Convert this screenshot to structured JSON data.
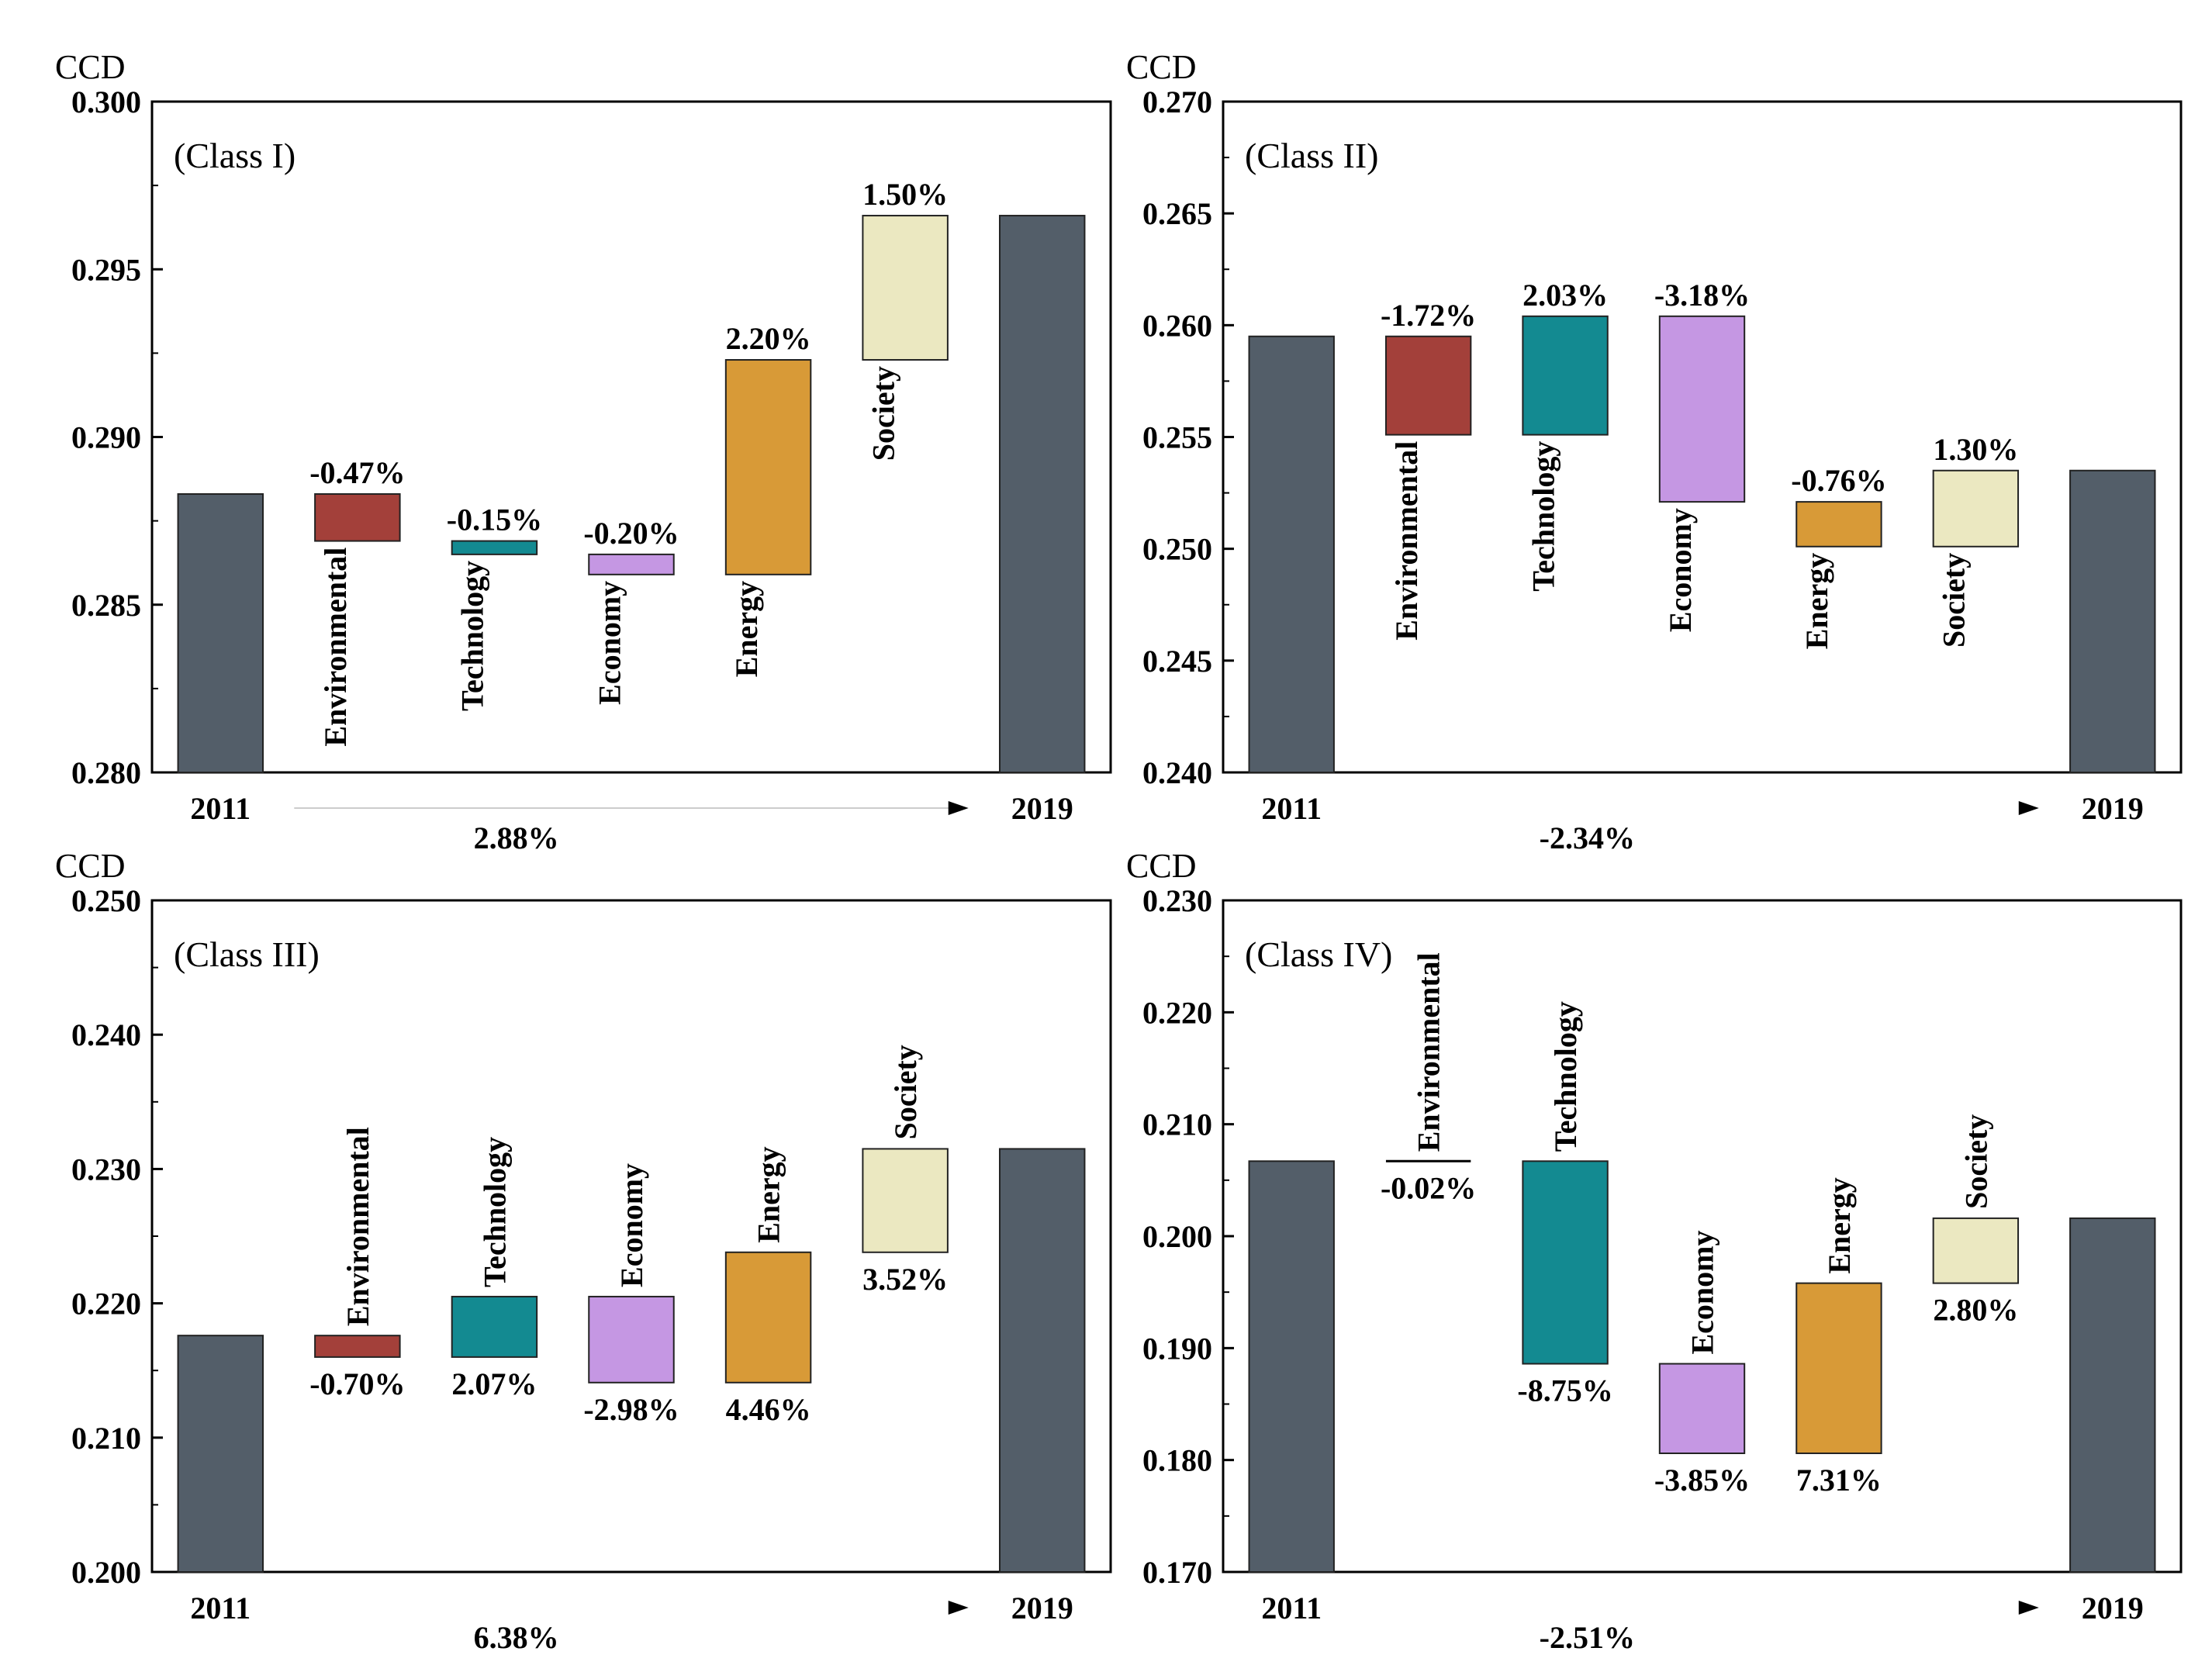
{
  "colors": {
    "endpoint": "#535e69",
    "Environmental": "#a3403a",
    "Technology": "#138a91",
    "Economy": "#c597e3",
    "Energy": "#d89a37",
    "Society": "#ebe8c1",
    "axis": "#000000"
  },
  "chart_data": [
    {
      "type": "waterfall",
      "title": "(Class I)",
      "ylabel": "CCD",
      "ylim": [
        0.28,
        0.3
      ],
      "yticks": [
        "0.280",
        "0.285",
        "0.290",
        "0.295",
        "0.300"
      ],
      "start": {
        "label": "2011",
        "value": 0.2883
      },
      "end": {
        "label": "2019",
        "value": 0.2966
      },
      "total_change": "2.88%",
      "steps": [
        {
          "name": "Environmental",
          "from": 0.2883,
          "to": 0.2869,
          "pct": "-0.47%"
        },
        {
          "name": "Technology",
          "from": 0.2869,
          "to": 0.2865,
          "pct": "-0.15%"
        },
        {
          "name": "Economy",
          "from": 0.2865,
          "to": 0.2859,
          "pct": "-0.20%"
        },
        {
          "name": "Energy",
          "from": 0.2859,
          "to": 0.2923,
          "pct": "2.20%"
        },
        {
          "name": "Society",
          "from": 0.2923,
          "to": 0.2966,
          "pct": "1.50%"
        }
      ]
    },
    {
      "type": "waterfall",
      "title": "(Class II)",
      "ylabel": "CCD",
      "ylim": [
        0.24,
        0.27
      ],
      "yticks": [
        "0.240",
        "0.245",
        "0.250",
        "0.255",
        "0.260",
        "0.265",
        "0.270"
      ],
      "start": {
        "label": "2011",
        "value": 0.2595
      },
      "end": {
        "label": "2019",
        "value": 0.2535
      },
      "total_change": "-2.34%",
      "steps": [
        {
          "name": "Environmental",
          "from": 0.2595,
          "to": 0.2551,
          "pct": "-1.72%"
        },
        {
          "name": "Technology",
          "from": 0.2551,
          "to": 0.2604,
          "pct": "2.03%"
        },
        {
          "name": "Economy",
          "from": 0.2604,
          "to": 0.2521,
          "pct": "-3.18%"
        },
        {
          "name": "Energy",
          "from": 0.2521,
          "to": 0.2501,
          "pct": "-0.76%"
        },
        {
          "name": "Society",
          "from": 0.2501,
          "to": 0.2535,
          "pct": "1.30%"
        }
      ]
    },
    {
      "type": "waterfall",
      "title": "(Class III)",
      "ylabel": "CCD",
      "ylim": [
        0.2,
        0.25
      ],
      "yticks": [
        "0.200",
        "0.210",
        "0.220",
        "0.230",
        "0.240",
        "0.250"
      ],
      "start": {
        "label": "2011",
        "value": 0.2176
      },
      "end": {
        "label": "2019",
        "value": 0.2315
      },
      "total_change": "6.38%",
      "steps": [
        {
          "name": "Environmental",
          "from": 0.2176,
          "to": 0.216,
          "pct": "-0.70%"
        },
        {
          "name": "Technology",
          "from": 0.216,
          "to": 0.2205,
          "pct": "2.07%"
        },
        {
          "name": "Economy",
          "from": 0.2205,
          "to": 0.2141,
          "pct": "-2.98%"
        },
        {
          "name": "Energy",
          "from": 0.2141,
          "to": 0.2238,
          "pct": "4.46%"
        },
        {
          "name": "Society",
          "from": 0.2238,
          "to": 0.2315,
          "pct": "3.52%"
        }
      ]
    },
    {
      "type": "waterfall",
      "title": "(Class IV)",
      "ylabel": "CCD",
      "ylim": [
        0.17,
        0.23
      ],
      "yticks": [
        "0.170",
        "0.180",
        "0.190",
        "0.200",
        "0.210",
        "0.220",
        "0.230"
      ],
      "start": {
        "label": "2011",
        "value": 0.2067
      },
      "end": {
        "label": "2019",
        "value": 0.2016
      },
      "total_change": "-2.51%",
      "steps": [
        {
          "name": "Environmental",
          "from": 0.2067,
          "to": 0.2067,
          "pct": "-0.02%"
        },
        {
          "name": "Technology",
          "from": 0.2067,
          "to": 0.1886,
          "pct": "-8.75%"
        },
        {
          "name": "Economy",
          "from": 0.1886,
          "to": 0.1806,
          "pct": "-3.85%"
        },
        {
          "name": "Energy",
          "from": 0.1806,
          "to": 0.1958,
          "pct": "7.31%"
        },
        {
          "name": "Society",
          "from": 0.1958,
          "to": 0.2016,
          "pct": "2.80%"
        }
      ]
    }
  ]
}
